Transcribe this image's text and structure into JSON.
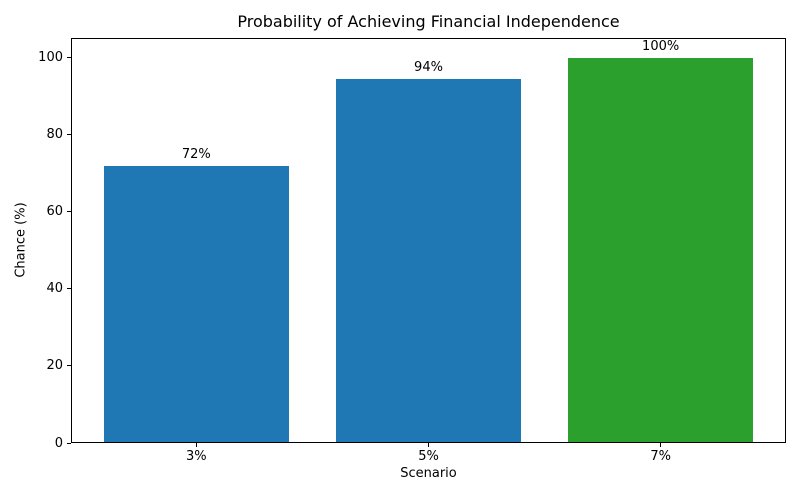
{
  "chart_data": {
    "type": "bar",
    "title": "Probability of Achieving Financial Independence",
    "xlabel": "Scenario",
    "ylabel": "Chance (%)",
    "categories": [
      "3%",
      "5%",
      "7%"
    ],
    "values": [
      71.7,
      94.3,
      99.8
    ],
    "bar_labels": [
      "72%",
      "94%",
      "100%"
    ],
    "bar_colors": [
      "#1f77b4",
      "#1f77b4",
      "#2ca02c"
    ],
    "ylim": [
      0,
      105
    ],
    "yticks": [
      0,
      20,
      40,
      60,
      80,
      100
    ],
    "grid": false,
    "legend_position": "none",
    "background": "#ffffff"
  }
}
